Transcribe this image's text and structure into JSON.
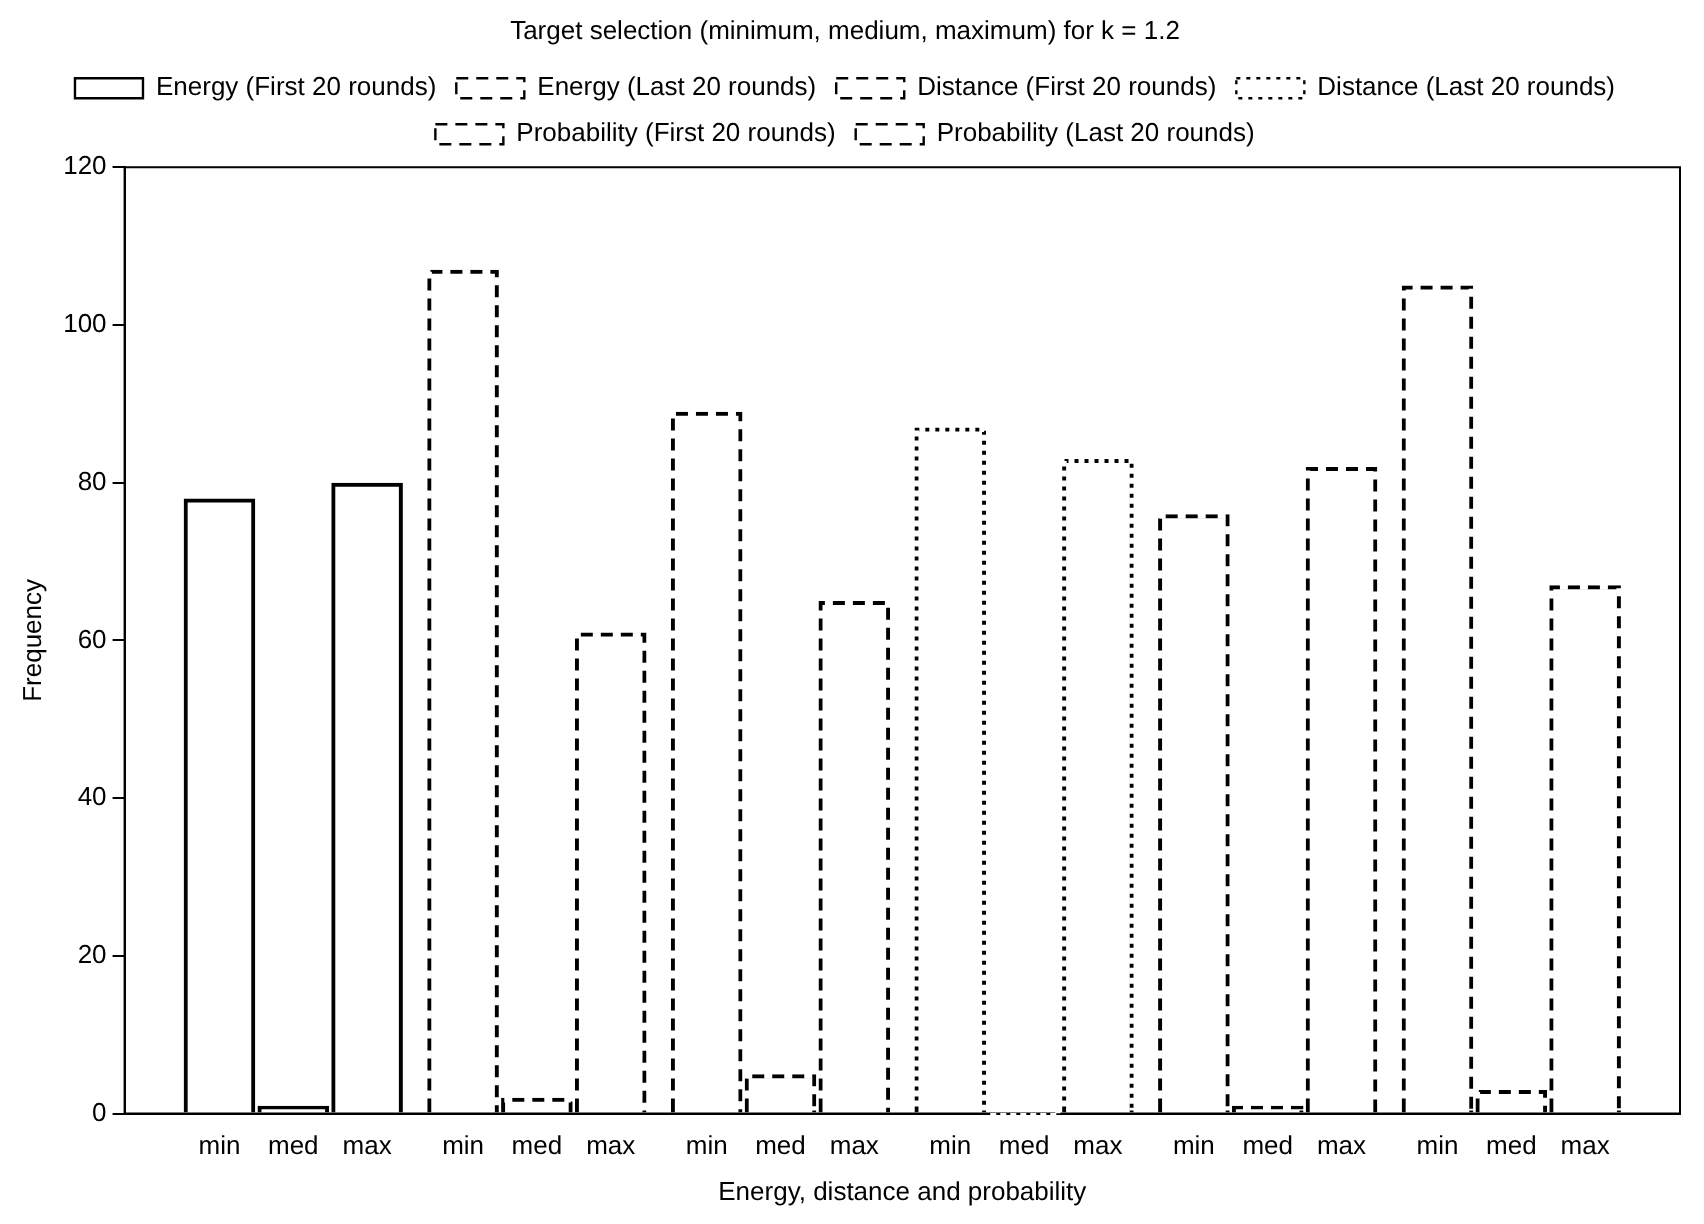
{
  "chart_data": {
    "type": "bar",
    "title": "Target selection (minimum, medium, maximum) for k = 1.2",
    "xlabel": "Energy, distance and probability",
    "ylabel": "Frequency",
    "categories": [
      "min",
      "med",
      "max",
      "min",
      "med",
      "max",
      "min",
      "med",
      "max",
      "min",
      "med",
      "max",
      "min",
      "med",
      "max",
      "min",
      "med",
      "max"
    ],
    "series": [
      {
        "name": "Energy (First 20 rounds)",
        "color": "#000000",
        "line_style": "solid",
        "values": [
          78,
          1,
          80,
          null,
          null,
          null,
          null,
          null,
          null,
          null,
          null,
          null,
          null,
          null,
          null,
          null,
          null,
          null
        ]
      },
      {
        "name": "Energy (Last 20 rounds)",
        "color": "#000000",
        "line_style": "dashed",
        "values": [
          null,
          null,
          null,
          107,
          2,
          61,
          null,
          null,
          null,
          null,
          null,
          null,
          null,
          null,
          null,
          null,
          null,
          null
        ]
      },
      {
        "name": "Distance (First 20 rounds)",
        "color": "#000000",
        "line_style": "dashed",
        "values": [
          null,
          null,
          null,
          null,
          null,
          null,
          89,
          5,
          65,
          null,
          null,
          null,
          null,
          null,
          null,
          null,
          null,
          null
        ]
      },
      {
        "name": "Distance (Last 20 rounds)",
        "color": "#000000",
        "line_style": "dotted",
        "values": [
          null,
          null,
          null,
          null,
          null,
          null,
          null,
          null,
          null,
          87,
          0,
          83,
          null,
          null,
          null,
          null,
          null,
          null
        ]
      },
      {
        "name": "Probability (First 20 rounds)",
        "color": "#000000",
        "line_style": "dashed",
        "values": [
          null,
          null,
          null,
          null,
          null,
          null,
          null,
          null,
          null,
          null,
          null,
          null,
          76,
          1,
          82,
          null,
          null,
          null
        ]
      },
      {
        "name": "Probability (Last 20 rounds)",
        "color": "#000000",
        "line_style": "dashed",
        "values": [
          null,
          null,
          null,
          null,
          null,
          null,
          null,
          null,
          null,
          null,
          null,
          null,
          null,
          null,
          null,
          105,
          3,
          67
        ]
      }
    ],
    "ylim": [
      0,
      120
    ],
    "yticks": [
      0,
      20,
      40,
      60,
      80,
      100,
      120
    ],
    "grid": false,
    "legend": "top"
  }
}
